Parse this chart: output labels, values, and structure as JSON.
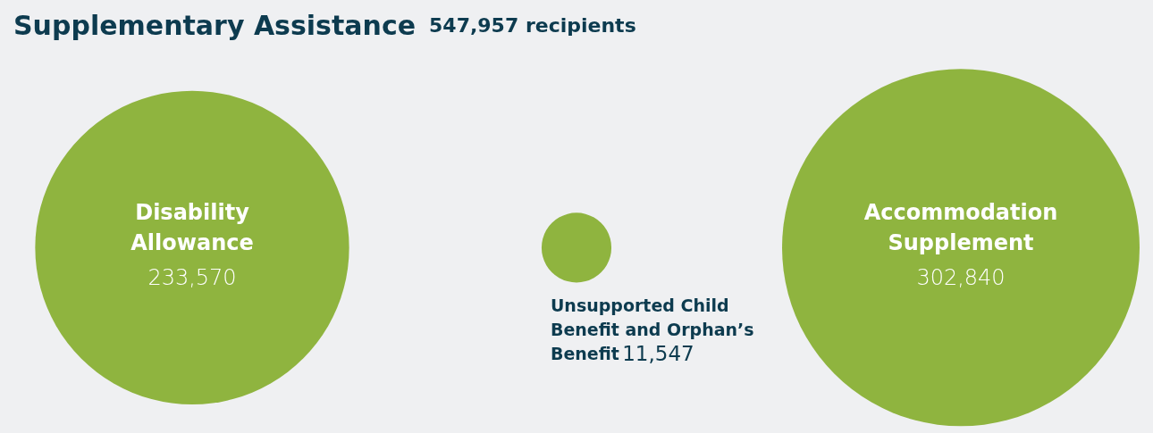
{
  "chart_data": {
    "type": "other",
    "title": "Supplementary Assistance",
    "subtitle": "547,957 recipients",
    "categories": [
      "Disability Allowance",
      "Unsupported Child Benefit and Orphan’s Benefit",
      "Accommodation Supplement"
    ],
    "values": [
      233570,
      11547,
      302840
    ],
    "color": "#8fb43f",
    "value_labels": [
      "233,570",
      "11,547",
      "302,840"
    ]
  }
}
